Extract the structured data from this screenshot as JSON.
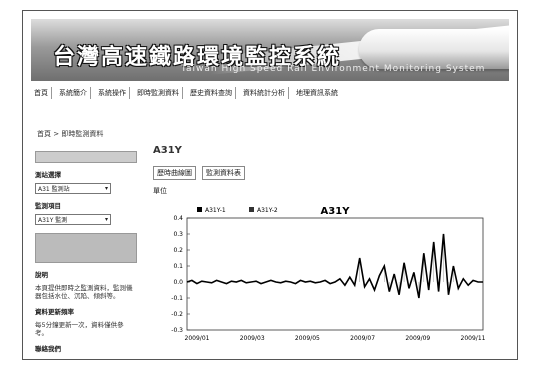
{
  "banner": {
    "title": "台灣高速鐵路環境監控系統",
    "subtitle": "Taiwan High Speed Rail Environment Monitoring System"
  },
  "nav": {
    "items": [
      "首頁",
      "系統簡介",
      "系統操作",
      "即時監測資料",
      "歷史資料查詢",
      "資料統計分析",
      "地理資訊系統"
    ]
  },
  "breadcrumb": "首頁 > 即時監測資料",
  "sidebar": {
    "filter_label": "測站選擇",
    "station_value": "A31 監測站",
    "item_label": "監測項目",
    "item_value": "A31Y 監測",
    "info_label": "說明",
    "info_text": "本頁提供即時之監測資料，監測儀器包括水位、沉陷、傾斜等。",
    "note_label": "資料更新頻率",
    "note_text": "每5分鐘更新一次，資料僅供參考。",
    "footer": "聯絡我們"
  },
  "main": {
    "heading": "A31Y",
    "tabs": [
      "歷時曲線圖",
      "監測資料表"
    ],
    "small_label": "單位"
  },
  "chart_data": {
    "type": "line",
    "title": "A31Y",
    "legend_position": "top-left",
    "series": [
      {
        "name": "A31Y-1",
        "color": "#000000"
      },
      {
        "name": "A31Y-2",
        "color": "#333333"
      }
    ],
    "yaxis": {
      "ticks": [
        "0.4",
        "0.3",
        "0.2",
        "0.1",
        "0.0",
        "-0.1",
        "-0.2",
        "-0.3"
      ],
      "ylim": [
        -0.3,
        0.4
      ]
    },
    "xaxis": {
      "ticks": [
        "2009/01",
        "2009/03",
        "2009/05",
        "2009/07",
        "2009/09",
        "2009/11"
      ]
    },
    "x": [
      0,
      1,
      2,
      3,
      4,
      5,
      6,
      7,
      8,
      9,
      10,
      11,
      12,
      13,
      14,
      15,
      16,
      17,
      18,
      19,
      20,
      21,
      22,
      23,
      24,
      25,
      26,
      27,
      28,
      29,
      30,
      31,
      32,
      33,
      34,
      35,
      36,
      37,
      38,
      39,
      40,
      41,
      42,
      43,
      44,
      45,
      46,
      47,
      48,
      49,
      50,
      51,
      52,
      53,
      54,
      55,
      56,
      57,
      58,
      59,
      60
    ],
    "values": [
      0.0,
      0.01,
      -0.01,
      0.005,
      0.0,
      -0.005,
      0.01,
      0.0,
      -0.01,
      0.005,
      0.0,
      0.01,
      -0.005,
      0.0,
      0.005,
      -0.01,
      0.0,
      0.01,
      0.0,
      -0.005,
      0.005,
      0.0,
      -0.01,
      0.01,
      0.0,
      0.005,
      -0.005,
      0.0,
      0.01,
      -0.01,
      0.0,
      0.02,
      -0.02,
      0.03,
      -0.02,
      0.15,
      -0.03,
      0.02,
      -0.05,
      0.04,
      0.1,
      -0.06,
      0.05,
      -0.08,
      0.12,
      -0.04,
      0.06,
      -0.1,
      0.18,
      -0.05,
      0.25,
      -0.06,
      0.3,
      -0.08,
      0.1,
      -0.04,
      0.02,
      -0.02,
      0.01,
      0.0,
      0.0
    ]
  }
}
